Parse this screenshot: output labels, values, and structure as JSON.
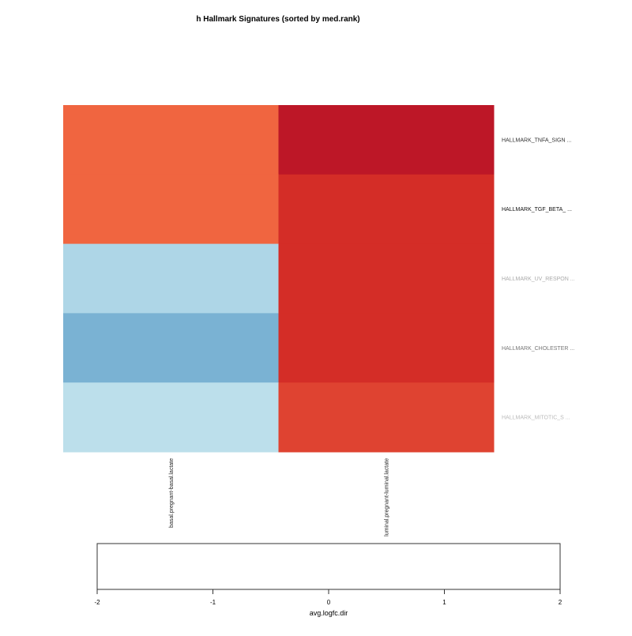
{
  "chart_data": {
    "type": "heatmap",
    "title": "h Hallmark Signatures (sorted by med.rank)",
    "categories": [
      "basal.pregnant-basal.lactate",
      "luminal.pregnant-luminal.lactate"
    ],
    "rows": [
      "HALLMARK_TNFA_SIGN ...",
      "HALLMARK_TGF_BETA_ ...",
      "HALLMARK_UV_RESPON ...",
      "HALLMARK_CHOLESTER ...",
      "HALLMARK_MITOTIC_S ..."
    ],
    "row_label_colors": [
      "#333333",
      "#111111",
      "#aaaaaa",
      "#777777",
      "#bbbbbb"
    ],
    "values": [
      [
        1.0,
        1.75
      ],
      [
        1.0,
        1.5
      ],
      [
        -0.55,
        1.5
      ],
      [
        -0.95,
        1.5
      ],
      [
        -0.45,
        1.3
      ]
    ],
    "colormap": [
      [
        -2,
        "#313695"
      ],
      [
        -1,
        "#74add1"
      ],
      [
        -0.5,
        "#b4dbe9"
      ],
      [
        0,
        "#ffffff"
      ],
      [
        0.5,
        "#fdae61"
      ],
      [
        1,
        "#f06540"
      ],
      [
        1.5,
        "#d42d27"
      ],
      [
        2,
        "#a50026"
      ]
    ],
    "legend": {
      "xlabel": "avg.logfc.dir",
      "xlim": [
        -2,
        2
      ],
      "xticks": [
        -2,
        -1,
        0,
        1,
        2
      ]
    }
  }
}
